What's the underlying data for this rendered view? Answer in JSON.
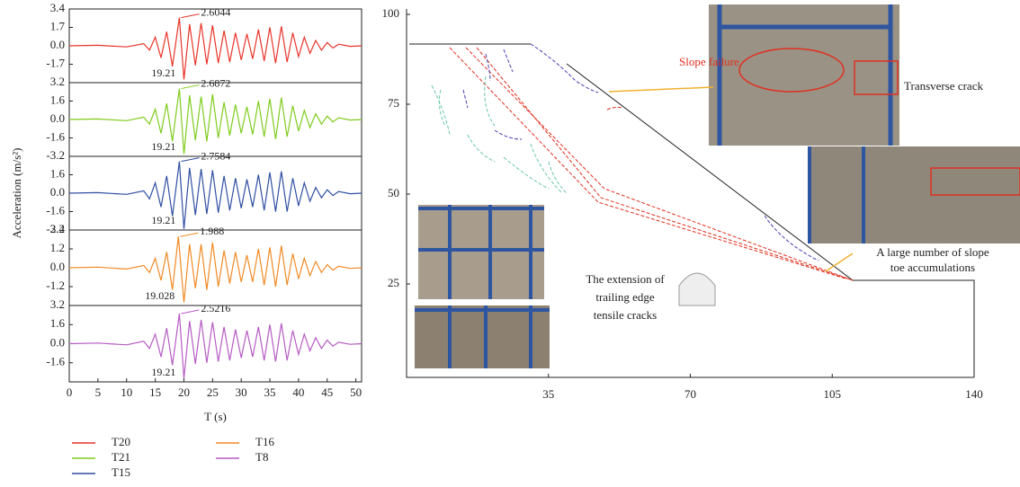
{
  "chart_data": [
    {
      "type": "line",
      "xlim": [
        0,
        51
      ],
      "ylim": [
        -3.4,
        3.4
      ],
      "yticks": [
        3.4,
        1.7,
        {
          "value": 0,
          "label": "0.0"
        },
        -1.7
      ],
      "x": [
        0,
        5,
        10,
        13,
        14,
        15,
        16,
        17,
        18,
        19.21,
        20,
        21,
        22,
        23,
        24,
        25,
        26,
        27,
        28,
        29,
        30,
        31,
        32,
        33,
        34,
        35,
        36,
        37,
        38,
        39,
        40,
        41,
        42,
        43,
        44,
        45,
        46,
        47,
        49,
        51
      ],
      "series": [
        {
          "name": "T20",
          "color": "#e8342a",
          "values": [
            0,
            0.05,
            -0.1,
            0.2,
            -0.4,
            0.8,
            -1.1,
            1.3,
            -1.9,
            2.6044,
            -3.1,
            2.0,
            -1.8,
            2.1,
            -1.7,
            1.9,
            -1.6,
            1.4,
            -1.5,
            1.2,
            -1.3,
            1.1,
            -1.2,
            1.5,
            -1.4,
            1.7,
            -1.6,
            1.8,
            -1.5,
            1.2,
            -1.0,
            0.8,
            -0.7,
            0.5,
            -0.4,
            0.3,
            -0.2,
            0.15,
            -0.05,
            0
          ]
        }
      ]
    },
    {
      "type": "line",
      "xlim": [
        0,
        51
      ],
      "ylim": [
        -3.2,
        3.2
      ],
      "yticks": [
        3.2,
        1.6,
        {
          "value": 0,
          "label": "0.0"
        },
        -1.6,
        -3.2
      ],
      "x": [
        0,
        5,
        10,
        13,
        14,
        15,
        16,
        17,
        18,
        19.21,
        20,
        21,
        22,
        23,
        24,
        25,
        26,
        27,
        28,
        29,
        30,
        31,
        32,
        33,
        34,
        35,
        36,
        37,
        38,
        39,
        40,
        41,
        42,
        43,
        44,
        45,
        46,
        47,
        49,
        51
      ],
      "series": [
        {
          "name": "T21",
          "color": "#7fcc1c",
          "values": [
            0,
            0.05,
            -0.1,
            0.2,
            -0.4,
            0.9,
            -1.2,
            1.4,
            -1.9,
            2.6872,
            -3.0,
            2.1,
            -1.8,
            2.0,
            -1.9,
            2.2,
            -1.6,
            1.5,
            -1.4,
            1.3,
            -1.2,
            1.1,
            -1.3,
            1.6,
            -1.5,
            1.8,
            -1.7,
            1.9,
            -1.5,
            1.2,
            -1.0,
            0.8,
            -0.7,
            0.5,
            -0.4,
            0.3,
            -0.2,
            0.15,
            -0.05,
            0
          ]
        }
      ]
    },
    {
      "type": "line",
      "xlim": [
        0,
        51
      ],
      "ylim": [
        -3.2,
        3.2
      ],
      "yticks": [
        1.6,
        {
          "value": 0,
          "label": "0.0"
        },
        -1.6,
        -3.2
      ],
      "ylabel": "Acceleration (m/s²)",
      "x": [
        0,
        5,
        10,
        13,
        14,
        15,
        16,
        17,
        18,
        19.21,
        20,
        21,
        22,
        23,
        24,
        25,
        26,
        27,
        28,
        29,
        30,
        31,
        32,
        33,
        34,
        35,
        36,
        37,
        38,
        39,
        40,
        41,
        42,
        43,
        44,
        45,
        46,
        47,
        49,
        51
      ],
      "series": [
        {
          "name": "T15",
          "color": "#2f4fa2",
          "values": [
            0,
            0.05,
            -0.1,
            0.2,
            -0.5,
            0.9,
            -1.2,
            1.5,
            -2.0,
            2.7584,
            -3.1,
            2.2,
            -1.9,
            2.1,
            -1.8,
            2.0,
            -1.7,
            1.5,
            -1.5,
            1.3,
            -1.3,
            1.2,
            -1.2,
            1.6,
            -1.5,
            1.8,
            -1.6,
            1.9,
            -1.6,
            1.3,
            -1.1,
            0.9,
            -0.7,
            0.5,
            -0.4,
            0.3,
            -0.2,
            0.15,
            -0.05,
            0
          ]
        }
      ]
    },
    {
      "type": "line",
      "xlim": [
        0,
        51
      ],
      "ylim": [
        -2.4,
        2.4
      ],
      "yticks": [
        2.4,
        1.2,
        {
          "value": 0,
          "label": "0.0"
        },
        -1.2
      ],
      "x": [
        0,
        5,
        10,
        13,
        14,
        15,
        16,
        17,
        18,
        19.028,
        20,
        21,
        22,
        23,
        24,
        25,
        26,
        27,
        28,
        29,
        30,
        31,
        32,
        33,
        34,
        35,
        36,
        37,
        38,
        39,
        40,
        41,
        42,
        43,
        44,
        45,
        46,
        47,
        49,
        51
      ],
      "series": [
        {
          "name": "T16",
          "color": "#f08a24",
          "values": [
            0,
            0.04,
            -0.08,
            0.15,
            -0.3,
            0.6,
            -0.8,
            1.0,
            -1.4,
            1.988,
            -2.2,
            1.5,
            -1.3,
            1.5,
            -1.4,
            1.6,
            -1.2,
            1.1,
            -1.0,
            1.0,
            -0.9,
            0.8,
            -0.9,
            1.2,
            -1.1,
            1.3,
            -1.2,
            1.4,
            -1.1,
            0.9,
            -0.7,
            0.6,
            -0.5,
            0.4,
            -0.3,
            0.2,
            -0.15,
            0.1,
            -0.04,
            0
          ]
        }
      ]
    },
    {
      "type": "line",
      "xlim": [
        0,
        51
      ],
      "ylim": [
        -3.2,
        3.2
      ],
      "yticks": [
        3.2,
        1.6,
        {
          "value": 0,
          "label": "0.0"
        },
        -1.6
      ],
      "xticks": [
        0,
        5,
        10,
        15,
        20,
        25,
        30,
        35,
        40,
        45,
        50
      ],
      "xlabel": "T (s)",
      "x": [
        0,
        5,
        10,
        13,
        14,
        15,
        16,
        17,
        18,
        19.21,
        20,
        21,
        22,
        23,
        24,
        25,
        26,
        27,
        28,
        29,
        30,
        31,
        32,
        33,
        34,
        35,
        36,
        37,
        38,
        39,
        40,
        41,
        42,
        43,
        44,
        45,
        46,
        47,
        49,
        51
      ],
      "series": [
        {
          "name": "T8",
          "color": "#b65bc4",
          "values": [
            0,
            0.05,
            -0.1,
            0.2,
            -0.4,
            0.8,
            -1.1,
            1.3,
            -1.8,
            2.5216,
            -2.9,
            1.9,
            -1.7,
            2.0,
            -1.6,
            1.8,
            -1.5,
            1.4,
            -1.4,
            1.2,
            -1.2,
            1.1,
            -1.1,
            1.4,
            -1.4,
            1.6,
            -1.5,
            1.7,
            -1.4,
            1.1,
            -0.9,
            0.8,
            -0.6,
            0.5,
            -0.4,
            0.3,
            -0.2,
            0.12,
            -0.05,
            0
          ]
        }
      ]
    },
    {
      "type": "diagram",
      "xlim": [
        0,
        140
      ],
      "ylim": [
        0,
        100
      ],
      "xticks": [
        35,
        70,
        105,
        140
      ],
      "yticks": [
        25,
        50,
        75,
        100
      ],
      "annotations": {
        "slope_failure": "Slope failure",
        "transverse_crack": "Transverse crack",
        "toe": [
          "A large number of slope",
          "toe accumulations"
        ],
        "extension": [
          "The extension of",
          "trailing edge",
          "tensile cracks"
        ]
      }
    }
  ]
}
